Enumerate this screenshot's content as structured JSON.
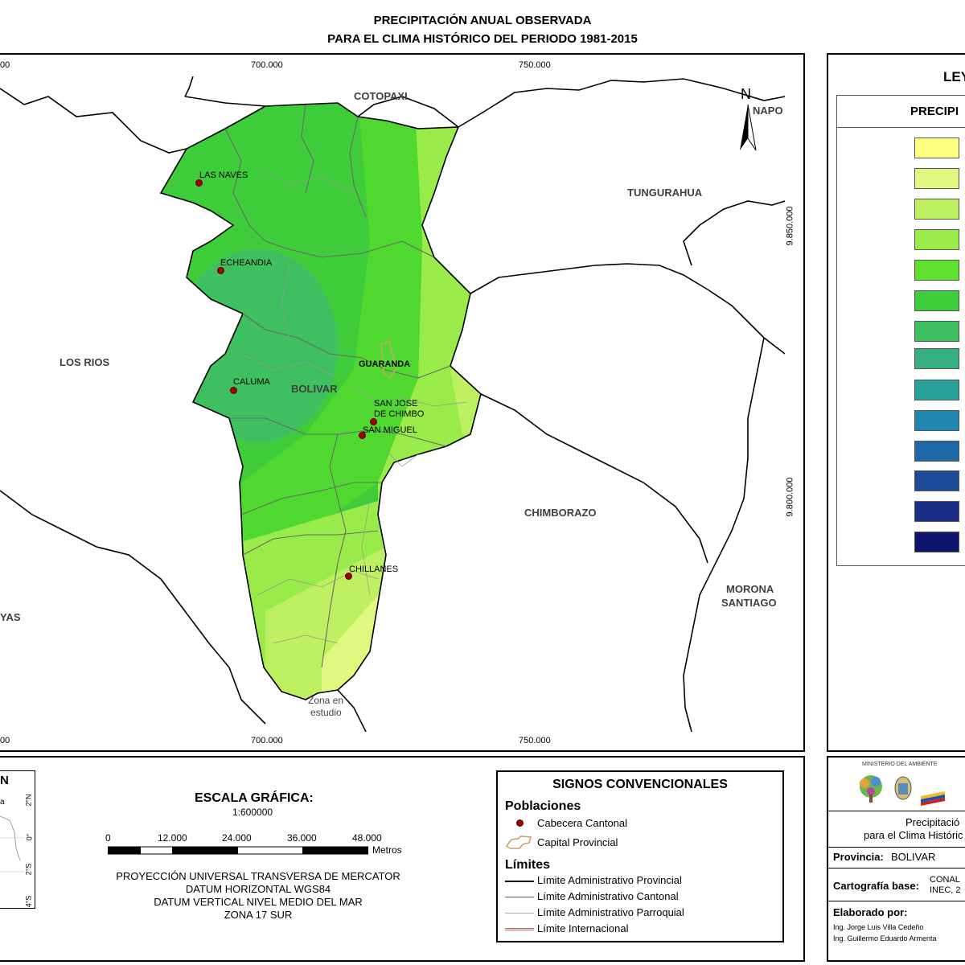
{
  "title": {
    "line1": "PRECIPITACIÓN ANUAL OBSERVADA",
    "line2": "PARA EL CLIMA HISTÓRICO DEL PERIODO 1981-2015"
  },
  "map": {
    "x_ticks_top": [
      "700.000",
      "750.000"
    ],
    "x_ticks_bottom": [
      "700.000",
      "750.000"
    ],
    "x_tick_left_partial": "00",
    "y_ticks": [
      "9.850.000",
      "9.800.000"
    ],
    "north_label": "N",
    "provinces": {
      "cotopaxi": "COTOPAXI",
      "napo": "NAPO",
      "tungurahua": "TUNGURAHUA",
      "los_rios": "LOS RIOS",
      "bolivar": "BOLIVAR",
      "chimborazo": "CHIMBORAZO",
      "morona1": "MORONA",
      "morona2": "SANTIAGO",
      "guayas_partial": "YAS"
    },
    "capital_label": "GUARANDA",
    "towns": {
      "las_naves": "LAS NAVES",
      "echeandia": "ECHEANDIA",
      "caluma": "CALUMA",
      "san_jose1": "SAN JOSE",
      "san_jose2": "DE CHIMBO",
      "san_miguel": "SAN MIGUEL",
      "chillanes": "CHILLANES"
    },
    "study_zone1": "Zona en",
    "study_zone2": "estudio"
  },
  "legend": {
    "title_partial": "LEY",
    "subtitle_partial": "PRECIPI",
    "swatch_colors": [
      "#ffff80",
      "#e0f880",
      "#bdf060",
      "#98eb48",
      "#5ee02e",
      "#3fcc3a",
      "#3ec060",
      "#36b080",
      "#2aa09a",
      "#2088b0",
      "#1f68a8",
      "#1e4a9a",
      "#1a2e88",
      "#0c1470"
    ]
  },
  "inset": {
    "title_partial": "N",
    "lat_labels": [
      "2°N",
      "0°",
      "2°S",
      "4°S"
    ],
    "word_partial": "a"
  },
  "scale": {
    "title": "ESCALA GRÁFICA:",
    "ratio": "1:600000",
    "ticks": [
      "0",
      "12.000",
      "24.000",
      "36.000",
      "48.000"
    ],
    "unit": "Metros",
    "projection": [
      "PROYECCIÓN UNIVERSAL TRANSVERSA DE MERCATOR",
      "DATUM HORIZONTAL WGS84",
      "DATUM VERTICAL NIVEL MEDIO DEL MAR",
      "ZONA 17 SUR"
    ]
  },
  "signs": {
    "title": "SIGNOS CONVENCIONALES",
    "poblaciones": "Poblaciones",
    "cabecera": "Cabecera Cantonal",
    "capital": "Capital Provincial",
    "limites": "Límites",
    "lim_prov": "Límite Administrativo Provincial",
    "lim_cant": "Límite Administrativo Cantonal",
    "lim_parr": "Límite Administrativo Parroquial",
    "lim_int": "Límite Internacional"
  },
  "info": {
    "ministry": "MINISTERIO DEL AMBIENTE",
    "desc1_partial": "Precipitació",
    "desc2_partial": "para el Clima Históric",
    "provincia_label": "Provincia:",
    "provincia_value": "BOLIVAR",
    "carto_label": "Cartografía base:",
    "carto_value1_partial": "CONAL",
    "carto_value2_partial": "INEC, 2",
    "elaborado_label": "Elaborado por:",
    "author1": "Ing. Jorge Luis Villa Cedeño",
    "author2_partial": "Ing. Guillermo Eduardo Armenta"
  }
}
